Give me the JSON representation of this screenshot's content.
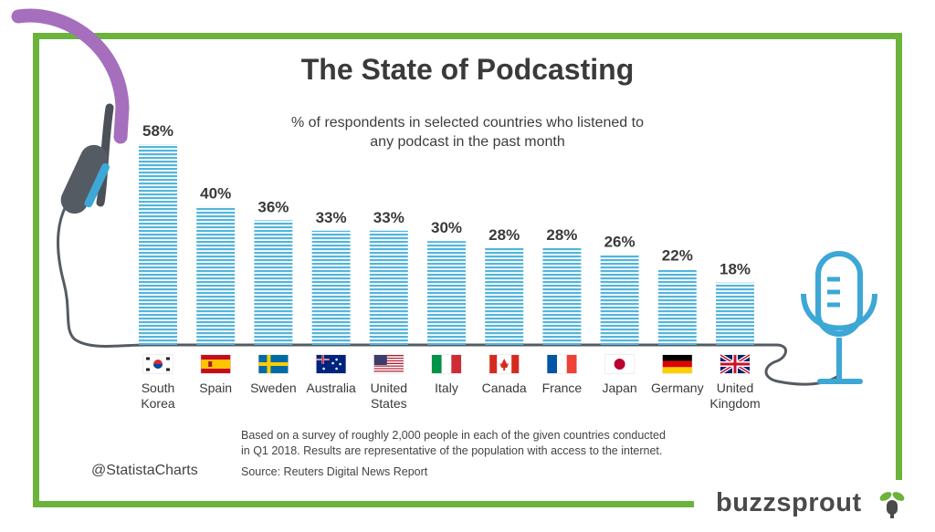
{
  "title": "The State of Podcasting",
  "subtitle_lines": [
    "% of respondents in selected countries who listened to",
    "any podcast in the past month"
  ],
  "chart_data": {
    "type": "bar",
    "title": "The State of Podcasting",
    "subtitle": "% of respondents in selected countries who listened to any podcast in the past month",
    "categories": [
      [
        "South",
        "Korea"
      ],
      [
        "Spain"
      ],
      [
        "Sweden"
      ],
      [
        "Australia"
      ],
      [
        "United",
        "States"
      ],
      [
        "Italy"
      ],
      [
        "Canada"
      ],
      [
        "France"
      ],
      [
        "Japan"
      ],
      [
        "Germany"
      ],
      [
        "United",
        "Kingdom"
      ]
    ],
    "flags": [
      "kr",
      "es",
      "se",
      "au",
      "us",
      "it",
      "ca",
      "fr",
      "jp",
      "de",
      "gb"
    ],
    "values": [
      58,
      40,
      36,
      33,
      33,
      30,
      28,
      28,
      26,
      22,
      18
    ],
    "value_suffix": "%",
    "ylim": [
      0,
      60
    ],
    "bar_color": "#52b5dc",
    "grid": false
  },
  "note_lines": [
    "Based on a survey of roughly 2,000 people in each of the given countries conducted",
    "in Q1 2018. Results are representative of the population with access to the internet."
  ],
  "source": "Source: Reuters Digital News Report",
  "handle": "@StatistaCharts",
  "logo": "buzzsprout",
  "colors": {
    "frame": "#6bb33a",
    "headphone_band": "#a56fbd",
    "headphone_cup": "#555b62",
    "mic": "#3da7d6",
    "text": "#3a3a3a"
  },
  "icons": [
    "headphones-icon",
    "microphone-icon",
    "buzzsprout-logo-icon"
  ]
}
